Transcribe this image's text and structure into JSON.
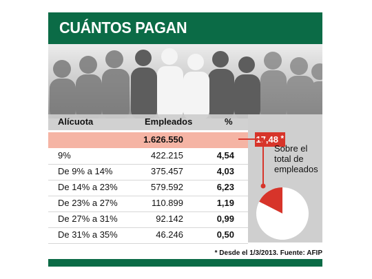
{
  "banner": {
    "title": "CUÁNTOS PAGAN"
  },
  "table": {
    "headers": {
      "alicuota": "Alícuota",
      "empleados": "Empleados",
      "pct": "%"
    },
    "total": {
      "empleados": "1.626.550",
      "pct": "17,48",
      "marker": "*"
    },
    "rows": [
      {
        "label": "9%",
        "empleados": "422.215",
        "pct": "4,54"
      },
      {
        "label": "De 9% a 14%",
        "empleados": "375.457",
        "pct": "4,03"
      },
      {
        "label": "De 14% a 23%",
        "empleados": "579.592",
        "pct": "6,23"
      },
      {
        "label": "De 23% a 27%",
        "empleados": "110.899",
        "pct": "1,19"
      },
      {
        "label": "De 27% a 31%",
        "empleados": "92.142",
        "pct": "0,99"
      },
      {
        "label": "De 31% a 35%",
        "empleados": "46.246",
        "pct": "0,50"
      }
    ]
  },
  "side_note": {
    "line1": "Sobre el",
    "line2": "total de",
    "line3": "empleados"
  },
  "footnote": "* Desde el 1/3/2013. Fuente: AFIP",
  "colors": {
    "green": "#0b6b46",
    "red": "#d7342a",
    "salmon": "#f5b4a4",
    "gray": "#cfcfcf"
  },
  "chart_data": {
    "type": "pie",
    "slices": [
      {
        "value": 17.48,
        "color": "#d7342a"
      },
      {
        "value": 82.52,
        "color": "#ffffff"
      }
    ]
  }
}
